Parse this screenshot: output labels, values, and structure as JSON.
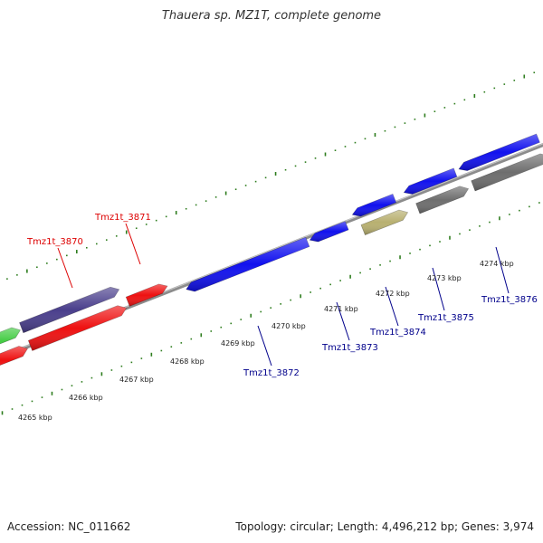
{
  "title": "Thauera sp. MZ1T, complete genome",
  "footer": {
    "accession": "Accession: NC_011662",
    "summary": "Topology: circular; Length: 4,496,212 bp; Genes: 3,974"
  },
  "colors": {
    "backbone": "#8c8c8c",
    "ticks": "#2e7d1e",
    "label_forward": "#dd0000",
    "label_reverse": "#00008b"
  },
  "kbp_labels": [
    "4265 kbp",
    "4266 kbp",
    "4267 kbp",
    "4268 kbp",
    "4269 kbp",
    "4270 kbp",
    "4271 kbp",
    "4272 kbp",
    "4273 kbp",
    "4274 kbp"
  ],
  "gene_labels": [
    {
      "name": "Tmz1t_3870",
      "strand": "forward"
    },
    {
      "name": "Tmz1t_3871",
      "strand": "forward"
    },
    {
      "name": "Tmz1t_3872",
      "strand": "reverse"
    },
    {
      "name": "Tmz1t_3873",
      "strand": "reverse"
    },
    {
      "name": "Tmz1t_3874",
      "strand": "reverse"
    },
    {
      "name": "Tmz1t_3875",
      "strand": "reverse"
    },
    {
      "name": "Tmz1t_3876",
      "strand": "reverse"
    }
  ],
  "features": [
    {
      "id": "f1",
      "color": "#44cc44"
    },
    {
      "id": "f2",
      "color": "#ee1111"
    },
    {
      "id": "f3",
      "color": "#4a3f8c"
    },
    {
      "id": "f4",
      "color": "#ee1111"
    },
    {
      "id": "f5",
      "color": "#ee1111"
    },
    {
      "id": "f6",
      "color": "#1111ee"
    },
    {
      "id": "f7",
      "color": "#1111ee"
    },
    {
      "id": "f8",
      "color": "#1111ee"
    },
    {
      "id": "f9",
      "color": "#b8b070"
    },
    {
      "id": "f10",
      "color": "#1111ee"
    },
    {
      "id": "f11",
      "color": "#6e6e6e"
    },
    {
      "id": "f12",
      "color": "#1111ee"
    },
    {
      "id": "f13",
      "color": "#6e6e6e"
    },
    {
      "id": "f14",
      "color": "#1111ee"
    },
    {
      "id": "f15",
      "color": "#4a8fc8"
    }
  ]
}
